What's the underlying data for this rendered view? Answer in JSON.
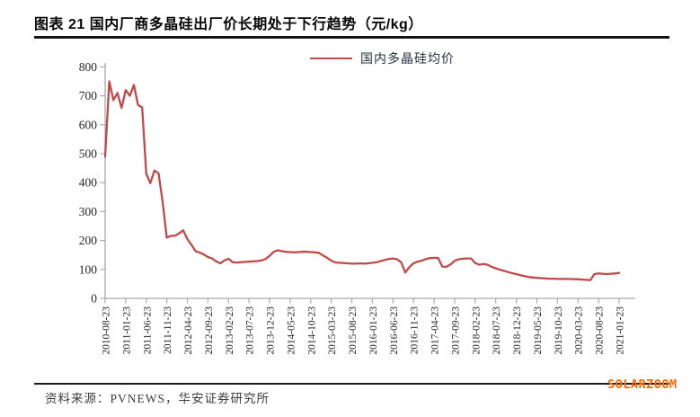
{
  "figure": {
    "title": "图表 21 国内厂商多晶硅出厂价长期处于下行趋势（元/kg）",
    "source": "资料来源：PVNEWS，华安证券研究所",
    "watermark": "SOLARZOOM"
  },
  "colors": {
    "line": "#be4b48",
    "axis": "#a9a9a9",
    "tick_text": "#262626",
    "watermark": "#ff6a00"
  },
  "chart_data": {
    "type": "line",
    "title": "图表 21 国内厂商多晶硅出厂价长期处于下行趋势（元/kg）",
    "xlabel": "",
    "ylabel": "",
    "unit": "元/kg",
    "grid": false,
    "legend_position": "top-center",
    "ylim": [
      0,
      800
    ],
    "ytick_step": 100,
    "x_tick_labels": [
      "2010-08-23",
      "2011-01-23",
      "2011-06-23",
      "2011-11-23",
      "2012-04-23",
      "2012-09-23",
      "2013-02-23",
      "2013-07-23",
      "2013-12-23",
      "2014-05-23",
      "2014-10-23",
      "2015-03-23",
      "2015-08-23",
      "2016-01-23",
      "2016-06-23",
      "2016-11-23",
      "2017-04-23",
      "2017-09-23",
      "2018-02-23",
      "2018-07-23",
      "2018-12-23",
      "2019-05-23",
      "2019-10-23",
      "2020-03-23",
      "2020-08-23",
      "2021-01-23"
    ],
    "x": [
      "2010-08-23",
      "2010-09-23",
      "2010-10-23",
      "2010-11-23",
      "2010-12-23",
      "2011-01-23",
      "2011-02-23",
      "2011-03-23",
      "2011-04-23",
      "2011-05-23",
      "2011-06-23",
      "2011-07-23",
      "2011-08-23",
      "2011-09-23",
      "2011-10-23",
      "2011-11-23",
      "2011-12-23",
      "2012-01-23",
      "2012-02-23",
      "2012-03-23",
      "2012-04-23",
      "2012-05-23",
      "2012-06-23",
      "2012-07-23",
      "2012-08-23",
      "2012-09-23",
      "2012-10-23",
      "2012-11-23",
      "2012-12-23",
      "2013-01-23",
      "2013-02-23",
      "2013-03-23",
      "2013-04-23",
      "2013-05-23",
      "2013-06-23",
      "2013-07-23",
      "2013-08-23",
      "2013-09-23",
      "2013-10-23",
      "2013-11-23",
      "2013-12-23",
      "2014-01-23",
      "2014-02-23",
      "2014-03-23",
      "2014-04-23",
      "2014-05-23",
      "2014-06-23",
      "2014-07-23",
      "2014-08-23",
      "2014-09-23",
      "2014-10-23",
      "2014-11-23",
      "2014-12-23",
      "2015-01-23",
      "2015-02-23",
      "2015-03-23",
      "2015-04-23",
      "2015-05-23",
      "2015-06-23",
      "2015-07-23",
      "2015-08-23",
      "2015-09-23",
      "2015-10-23",
      "2015-11-23",
      "2015-12-23",
      "2016-01-23",
      "2016-02-23",
      "2016-03-23",
      "2016-04-23",
      "2016-05-23",
      "2016-06-23",
      "2016-07-23",
      "2016-08-23",
      "2016-09-23",
      "2016-10-23",
      "2016-11-23",
      "2016-12-23",
      "2017-01-23",
      "2017-02-23",
      "2017-03-23",
      "2017-04-23",
      "2017-05-23",
      "2017-06-23",
      "2017-07-23",
      "2017-08-23",
      "2017-09-23",
      "2017-10-23",
      "2017-11-23",
      "2017-12-23",
      "2018-01-23",
      "2018-02-23",
      "2018-03-23",
      "2018-04-23",
      "2018-05-23",
      "2018-06-23",
      "2018-07-23",
      "2018-08-23",
      "2018-09-23",
      "2018-10-23",
      "2018-11-23",
      "2018-12-23",
      "2019-01-23",
      "2019-02-23",
      "2019-03-23",
      "2019-04-23",
      "2019-05-23",
      "2019-06-23",
      "2019-07-23",
      "2019-08-23",
      "2019-09-23",
      "2019-10-23",
      "2019-11-23",
      "2019-12-23",
      "2020-01-23",
      "2020-02-23",
      "2020-03-23",
      "2020-04-23",
      "2020-05-23",
      "2020-06-23",
      "2020-07-23",
      "2020-08-23",
      "2020-09-23",
      "2020-10-23",
      "2020-11-23",
      "2020-12-23",
      "2021-01-23"
    ],
    "series": [
      {
        "name": "国内多晶硅均价",
        "values": [
          490,
          750,
          685,
          710,
          658,
          720,
          700,
          738,
          668,
          660,
          430,
          398,
          442,
          432,
          330,
          210,
          216,
          216,
          225,
          235,
          205,
          185,
          163,
          158,
          152,
          143,
          138,
          128,
          121,
          131,
          137,
          125,
          124,
          125,
          126,
          127,
          128,
          129,
          131,
          136,
          147,
          161,
          166,
          163,
          161,
          160,
          159,
          160,
          161,
          161,
          160,
          159,
          157,
          148,
          140,
          130,
          124,
          123,
          122,
          121,
          120,
          120,
          121,
          120,
          121,
          123,
          125,
          129,
          133,
          136,
          138,
          135,
          125,
          89,
          108,
          121,
          127,
          130,
          136,
          139,
          140,
          139,
          110,
          109,
          117,
          130,
          135,
          137,
          138,
          138,
          122,
          116,
          119,
          116,
          109,
          104,
          99,
          95,
          91,
          87,
          84,
          80,
          77,
          74,
          72,
          71,
          70,
          69,
          68,
          68,
          67,
          67,
          67,
          67,
          66,
          66,
          65,
          64,
          63,
          84,
          86,
          85,
          84,
          85,
          86,
          88
        ]
      }
    ]
  }
}
